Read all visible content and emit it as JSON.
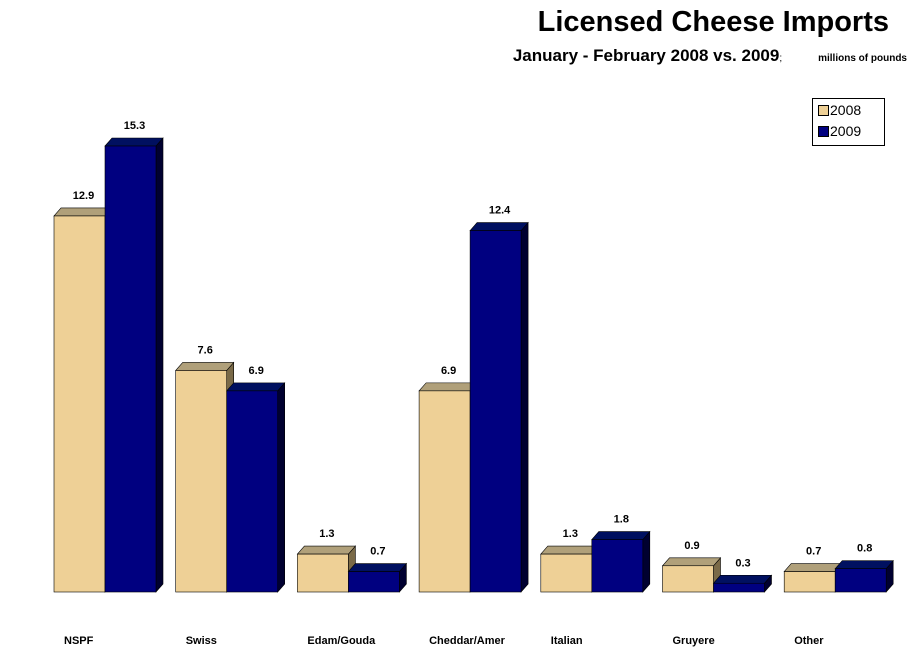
{
  "title": "Licensed Cheese Imports",
  "subtitle": "January - February 2008 vs. 2009",
  "subtitle_sep": ";",
  "units": "millions of pounds",
  "colors": {
    "2008": "#EED096",
    "2009": "#000080"
  },
  "chart_data": {
    "type": "bar",
    "title": "Licensed Cheese Imports",
    "subtitle": "January - February 2008 vs. 2009",
    "ylabel": "",
    "xlabel": "",
    "units": "millions of pounds",
    "categories": [
      "NSPF",
      "Swiss",
      "Edam/Gouda",
      "Cheddar/Amer",
      "Italian",
      "Gruyere",
      "Other"
    ],
    "series": [
      {
        "name": "2008",
        "values": [
          12.9,
          7.6,
          1.3,
          6.9,
          1.3,
          0.9,
          0.7
        ],
        "labels": [
          "12.9",
          "7.6",
          "1.3",
          "6.9",
          "1.3",
          "0.9",
          "0.7"
        ]
      },
      {
        "name": "2009",
        "values": [
          15.3,
          6.9,
          0.7,
          12.4,
          1.8,
          0.3,
          0.8
        ],
        "labels": [
          "15.3",
          "6.9",
          "0.7",
          "12.4",
          "1.8",
          "0.3",
          "0.8"
        ]
      }
    ],
    "ylim": [
      0,
      15.3
    ],
    "grid": false,
    "legend": "top-right",
    "style": "3d-bar"
  }
}
